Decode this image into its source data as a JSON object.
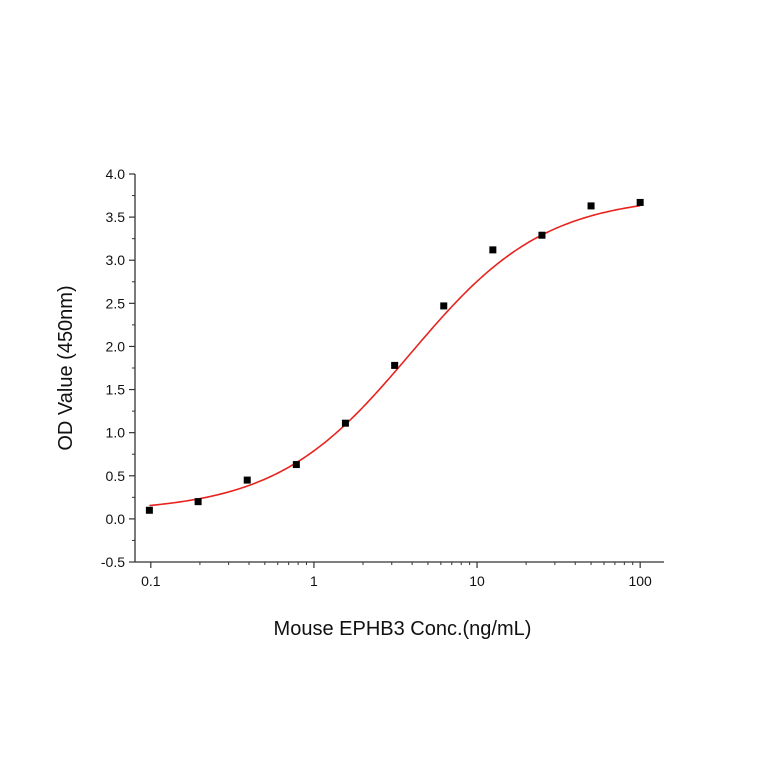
{
  "chart_data": {
    "type": "scatter",
    "title": "",
    "xlabel": "Mouse EPHB3 Conc.(ng/mL)",
    "ylabel": "OD Value (450nm)",
    "xscale": "log",
    "xlim": [
      0.08,
      140
    ],
    "ylim": [
      -0.5,
      4.0
    ],
    "xticks": [
      {
        "value": 0.1,
        "label": "0.1"
      },
      {
        "value": 1,
        "label": "1"
      },
      {
        "value": 10,
        "label": "10"
      },
      {
        "value": 100,
        "label": "100"
      }
    ],
    "yticks": [
      {
        "value": 4.0,
        "label": "4.0"
      },
      {
        "value": 3.5,
        "label": "3.5"
      },
      {
        "value": 3.0,
        "label": "3.0"
      },
      {
        "value": 2.5,
        "label": "2.5"
      },
      {
        "value": 2.0,
        "label": "2.0"
      },
      {
        "value": 1.5,
        "label": "1.5"
      },
      {
        "value": 1.0,
        "label": "1.0"
      },
      {
        "value": 0.5,
        "label": "0.5"
      },
      {
        "value": 0.0,
        "label": "0.0"
      },
      {
        "value": -0.5,
        "label": "-0.5"
      }
    ],
    "grid": false,
    "legend": "none",
    "series": [
      {
        "type": "scatter",
        "marker": "square",
        "color": "#000000",
        "x": [
          0.098,
          0.195,
          0.39,
          0.78,
          1.56,
          3.125,
          6.25,
          12.5,
          25,
          50,
          100
        ],
        "y": [
          0.1,
          0.2,
          0.45,
          0.63,
          1.11,
          1.78,
          2.47,
          3.12,
          3.29,
          3.63,
          3.67
        ]
      },
      {
        "type": "fit",
        "model": "4PL",
        "color": "#e8231e",
        "params": {
          "bottom": 0.08,
          "top": 3.75,
          "ec50": 3.9,
          "hill": 1.05
        }
      }
    ]
  }
}
